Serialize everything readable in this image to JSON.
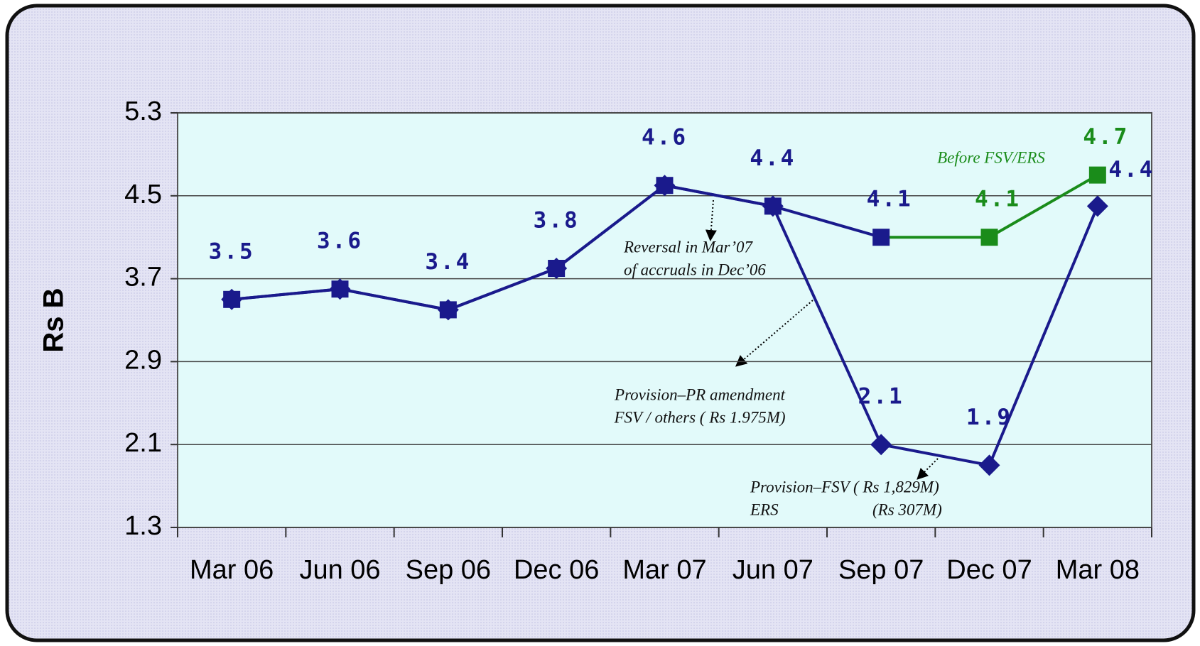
{
  "chart_data": {
    "type": "line",
    "categories": [
      "Mar 06",
      "Jun 06",
      "Sep 06",
      "Dec 06",
      "Mar 07",
      "Jun 07",
      "Sep 07",
      "Dec 07",
      "Mar 08"
    ],
    "ylabel": "Rs B",
    "ylim": [
      1.3,
      5.3
    ],
    "yticks": [
      1.3,
      2.1,
      2.9,
      3.7,
      4.5,
      5.3
    ],
    "grid": true,
    "series": [
      {
        "color": "#1a1a8c",
        "marker": "diamond",
        "values": [
          3.5,
          3.6,
          3.4,
          3.8,
          4.6,
          4.4,
          2.1,
          1.9,
          4.4
        ]
      },
      {
        "name": "Before FSV/ERS",
        "color": "#1a8c1a",
        "marker": "square",
        "values": [
          3.5,
          3.6,
          3.4,
          3.8,
          4.6,
          4.4,
          4.1,
          4.1,
          4.7
        ],
        "point_colors": [
          "#1a1a8c",
          "#1a1a8c",
          "#1a1a8c",
          "#1a1a8c",
          "#1a1a8c",
          "#1a1a8c",
          "#1a1a8c",
          "#1a8c1a",
          "#1a8c1a"
        ]
      }
    ],
    "annotations": [
      [
        "Reversal in Mar’07",
        "of accruals in Dec’06"
      ],
      [
        "Provision–PR amendment",
        "FSV / others ( Rs 1.975M)"
      ],
      [
        "Provision–FSV ( Rs 1,829M)",
        "ERS",
        "(Rs 307M)"
      ]
    ]
  }
}
